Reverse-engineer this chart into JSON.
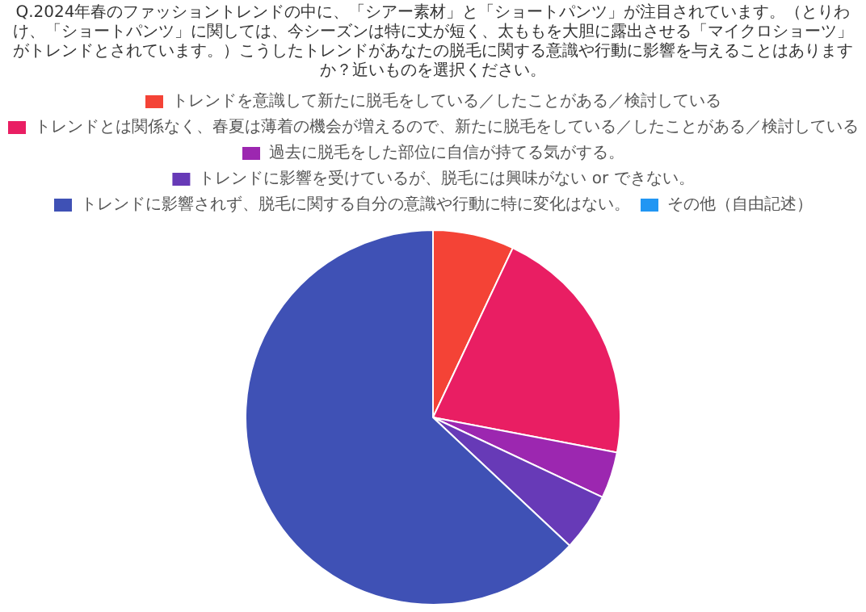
{
  "chart_data": {
    "type": "pie",
    "title": "Q.2024年春のファッショントレンドの中に、「シアー素材」と「ショートパンツ」が注目されています。（とりわけ、「ショートパンツ」に関しては、今シーズンは特に丈が短く、太ももを大胆に露出させる「マイクロショーツ」がトレンドとされています。）こうしたトレンドがあなたの脱毛に関する意識や行動に影響を与えることはありますか？近いものを選択ください。",
    "categories": [
      "トレンドを意識して新たに脱毛をしている／したことがある／検討している",
      "トレンドとは関係なく、春夏は薄着の機会が増えるので、新たに脱毛をしている／したことがある／検討している",
      "過去に脱毛をした部位に自信が持てる気がする。",
      "トレンドに影響を受けているが、脱毛には興味がない or できない。",
      "トレンドに影響されず、脱毛に関する自分の意識や行動に特に変化はない。",
      "その他（自由記述）"
    ],
    "values": [
      7,
      21,
      4,
      5,
      63,
      0
    ],
    "colors": [
      "#f44336",
      "#e91e63",
      "#9c27b0",
      "#673ab7",
      "#3f51b5",
      "#2196f3"
    ],
    "legend": "top"
  }
}
